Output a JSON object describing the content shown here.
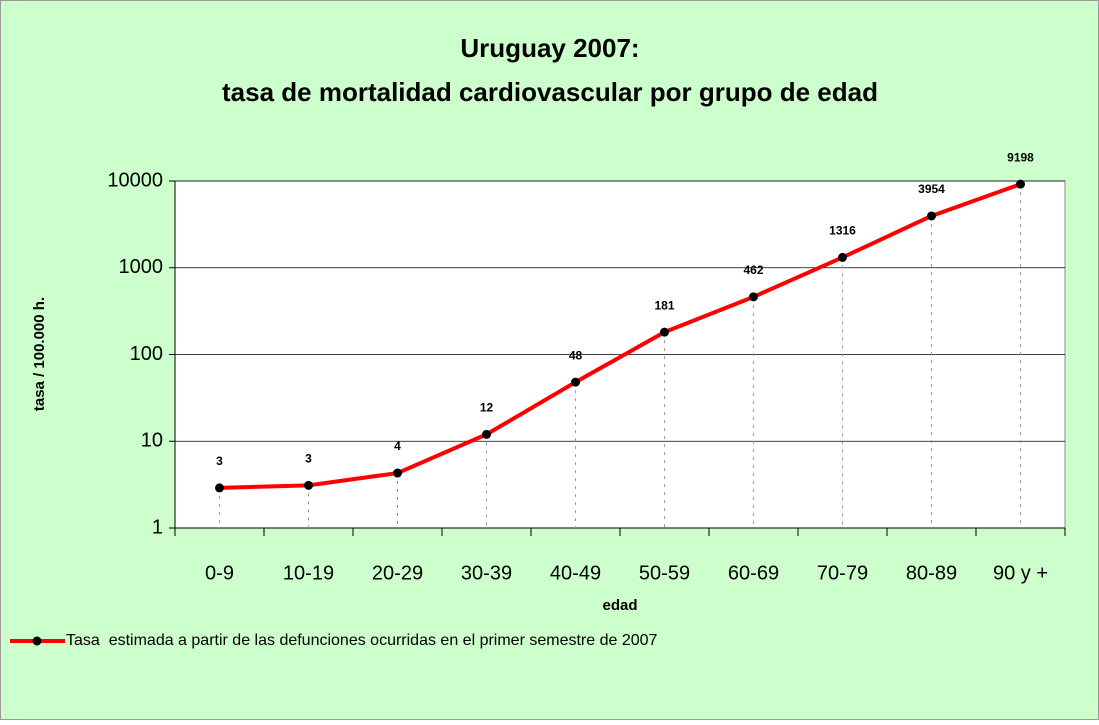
{
  "chart_data": {
    "type": "line",
    "title": [
      "Uruguay 2007:",
      "tasa de mortalidad cardiovascular por grupo de edad"
    ],
    "xlabel": "edad",
    "ylabel": "tasa / 100.000 h.",
    "categories": [
      "0-9",
      "10-19",
      "20-29",
      "30-39",
      "40-49",
      "50-59",
      "60-69",
      "70-79",
      "80-89",
      "90 y +"
    ],
    "series": [
      {
        "name": "Tasa  estimada a partir de las defunciones ocurridas en el primer semestre de 2007",
        "color": "#ff0000",
        "marker_color": "#000000",
        "values": [
          2.9,
          3.1,
          4.3,
          12,
          48,
          181,
          462,
          1316,
          3954,
          9198
        ],
        "value_labels": [
          "3",
          "3",
          "4",
          "12",
          "48",
          "181",
          "462",
          "1316",
          "3954",
          "9198"
        ]
      }
    ],
    "ylim": [
      1,
      10000
    ],
    "yticks": [
      1,
      10,
      100,
      1000,
      10000
    ],
    "log_y": true,
    "grid": true,
    "legend": "bottom-left"
  }
}
